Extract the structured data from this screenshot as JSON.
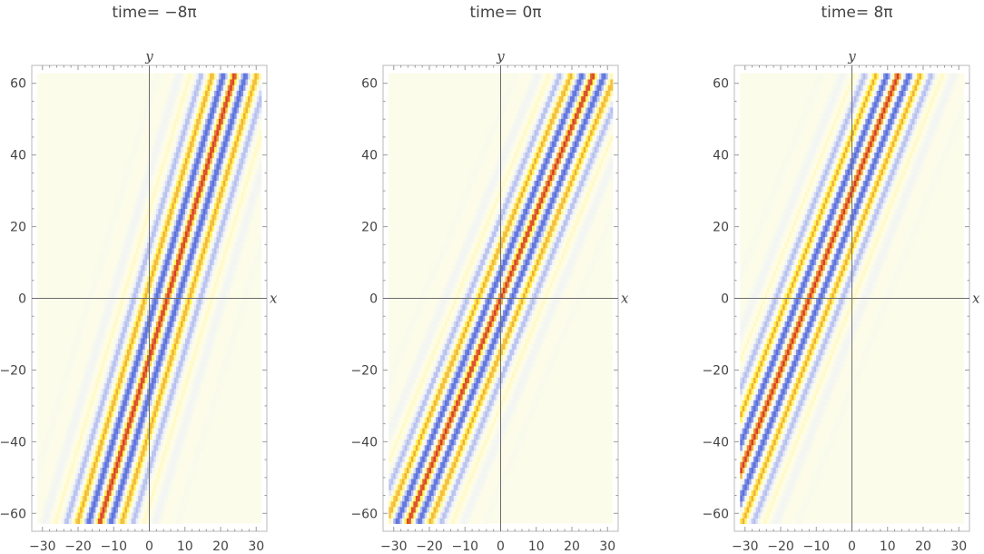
{
  "chart_data": [
    {
      "type": "heatmap",
      "title": "time= −8π",
      "time_multiple_of_pi": -8,
      "xlabel": "x",
      "ylabel": "y",
      "xlim": [
        -33,
        33
      ],
      "ylim": [
        -65,
        65
      ],
      "data_range": {
        "x": [
          -31.4,
          31.4
        ],
        "y": [
          -62.8,
          62.8
        ]
      },
      "xticks": [
        -30,
        -20,
        -10,
        0,
        10,
        20,
        30
      ],
      "yticks": [
        -60,
        -40,
        -20,
        0,
        20,
        40,
        60
      ],
      "xtick_labels": [
        "−30",
        "−20",
        "−10",
        "0",
        "10",
        "20",
        "30"
      ],
      "ytick_labels": [
        "−60",
        "−40",
        "−20",
        "0",
        "20",
        "40",
        "60"
      ],
      "colorscale": [
        "#4a62d8",
        "#eef1fa",
        "#fffce6",
        "#fff34a",
        "#d83a2a"
      ],
      "background": "#fbfce9",
      "wave_center_line": {
        "slope_y_per_x": 3.3,
        "x_at_y0": 5
      },
      "wavelength_x": 6.3
    },
    {
      "type": "heatmap",
      "title": "time= 0π",
      "time_multiple_of_pi": 0,
      "xlabel": "x",
      "ylabel": "y",
      "xlim": [
        -33,
        33
      ],
      "ylim": [
        -65,
        65
      ],
      "data_range": {
        "x": [
          -31.4,
          31.4
        ],
        "y": [
          -62.8,
          62.8
        ]
      },
      "xticks": [
        -30,
        -20,
        -10,
        0,
        10,
        20,
        30
      ],
      "yticks": [
        -60,
        -40,
        -20,
        0,
        20,
        40,
        60
      ],
      "xtick_labels": [
        "−30",
        "−20",
        "−10",
        "0",
        "10",
        "20",
        "30"
      ],
      "ytick_labels": [
        "−60",
        "−40",
        "−20",
        "0",
        "20",
        "40",
        "60"
      ],
      "colorscale": [
        "#4a62d8",
        "#eef1fa",
        "#fffce6",
        "#fff34a",
        "#d83a2a"
      ],
      "background": "#fbfce9",
      "wave_center_line": {
        "slope_y_per_x": 2.4,
        "x_at_y0": 0
      },
      "wavelength_x": 6.3
    },
    {
      "type": "heatmap",
      "title": "time= 8π",
      "time_multiple_of_pi": 8,
      "xlabel": "x",
      "ylabel": "y",
      "xlim": [
        -33,
        33
      ],
      "ylim": [
        -65,
        65
      ],
      "data_range": {
        "x": [
          -31.4,
          31.4
        ],
        "y": [
          -62.8,
          62.8
        ]
      },
      "xticks": [
        -30,
        -20,
        -10,
        0,
        10,
        20,
        30
      ],
      "yticks": [
        -60,
        -40,
        -20,
        0,
        20,
        40,
        60
      ],
      "xtick_labels": [
        "−30",
        "−20",
        "−10",
        "0",
        "10",
        "20",
        "30"
      ],
      "ytick_labels": [
        "−60",
        "−40",
        "−20",
        "0",
        "20",
        "40",
        "60"
      ],
      "colorscale": [
        "#4a62d8",
        "#eef1fa",
        "#fffce6",
        "#fff34a",
        "#d83a2a"
      ],
      "background": "#fbfce9",
      "wave_center_line": {
        "slope_y_per_x": 2.5,
        "x_at_y0": -12
      },
      "wavelength_x": 6.3
    }
  ]
}
